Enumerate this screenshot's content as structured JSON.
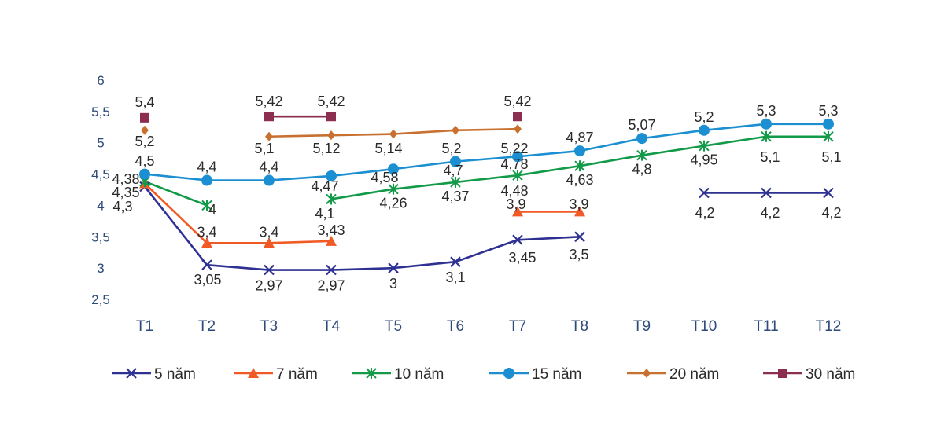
{
  "chart_data": {
    "type": "line",
    "title": "",
    "xlabel": "",
    "ylabel": "",
    "categories": [
      "T1",
      "T2",
      "T3",
      "T4",
      "T5",
      "T6",
      "T7",
      "T8",
      "T9",
      "T10",
      "T11",
      "T12"
    ],
    "y_ticks": [
      "6",
      "5,5",
      "5",
      "4,5",
      "4",
      "3,5",
      "3",
      "2,5"
    ],
    "y_tick_values": [
      6,
      5.5,
      5,
      4.5,
      4,
      3.5,
      3,
      2.5
    ],
    "ylim": [
      2.5,
      6
    ],
    "grid": false,
    "legend_position": "bottom",
    "series": [
      {
        "name": "5 năm",
        "color": "#2e3192",
        "marker": "x",
        "values": [
          4.3,
          3.05,
          2.97,
          2.97,
          3,
          3.1,
          3.45,
          3.5,
          null,
          4.2,
          4.2,
          4.2
        ],
        "labels": [
          "4,3",
          "3,05",
          "2,97",
          "2,97",
          "3",
          "3,1",
          "3,45",
          "3,5",
          "",
          "4,2",
          "4,2",
          "4,2"
        ]
      },
      {
        "name": "7 năm",
        "color": "#f15a24",
        "marker": "triangle",
        "values": [
          4.35,
          3.4,
          3.4,
          3.43,
          null,
          null,
          3.9,
          3.9,
          null,
          null,
          null,
          null
        ],
        "labels": [
          "4,35",
          "3,4",
          "3,4",
          "3,43",
          "",
          "",
          "3,9",
          "3,9",
          "",
          "",
          "",
          ""
        ]
      },
      {
        "name": "10 năm",
        "color": "#129a49",
        "marker": "asterisk",
        "values": [
          4.38,
          4,
          null,
          4.1,
          4.26,
          4.37,
          4.48,
          4.63,
          4.8,
          4.95,
          5.1,
          5.1
        ],
        "labels": [
          "4,38",
          "4",
          "",
          "4,1",
          "4,26",
          "4,37",
          "4,48",
          "4,63",
          "4,8",
          "4,95",
          "5,1",
          "5,1"
        ]
      },
      {
        "name": "15 năm",
        "color": "#1b8fd1",
        "marker": "circle",
        "values": [
          4.5,
          4.4,
          4.4,
          4.47,
          4.58,
          4.7,
          4.78,
          4.87,
          5.07,
          5.2,
          5.3,
          5.3
        ],
        "labels": [
          "4,5",
          "4,4",
          "4,4",
          "4,47",
          "4,58",
          "4,7",
          "4,78",
          "4,87",
          "5,07",
          "5,2",
          "5,3",
          "5,3"
        ]
      },
      {
        "name": "20 năm",
        "color": "#c8702f",
        "marker": "diamond",
        "values": [
          5.2,
          null,
          5.1,
          5.12,
          5.14,
          5.2,
          5.22,
          null,
          null,
          null,
          null,
          null
        ],
        "labels": [
          "5,2",
          "",
          "5,1",
          "5,12",
          "5,14",
          "5,2",
          "5,22",
          "",
          "",
          "",
          "",
          ""
        ]
      },
      {
        "name": "30 năm",
        "color": "#8b2e4f",
        "marker": "square",
        "values": [
          5.4,
          null,
          5.42,
          5.42,
          null,
          null,
          5.42,
          null,
          null,
          null,
          null,
          null
        ],
        "labels": [
          "5,4",
          "",
          "5,42",
          "5,42",
          "",
          "",
          "5,42",
          "",
          "",
          "",
          "",
          ""
        ]
      }
    ]
  }
}
